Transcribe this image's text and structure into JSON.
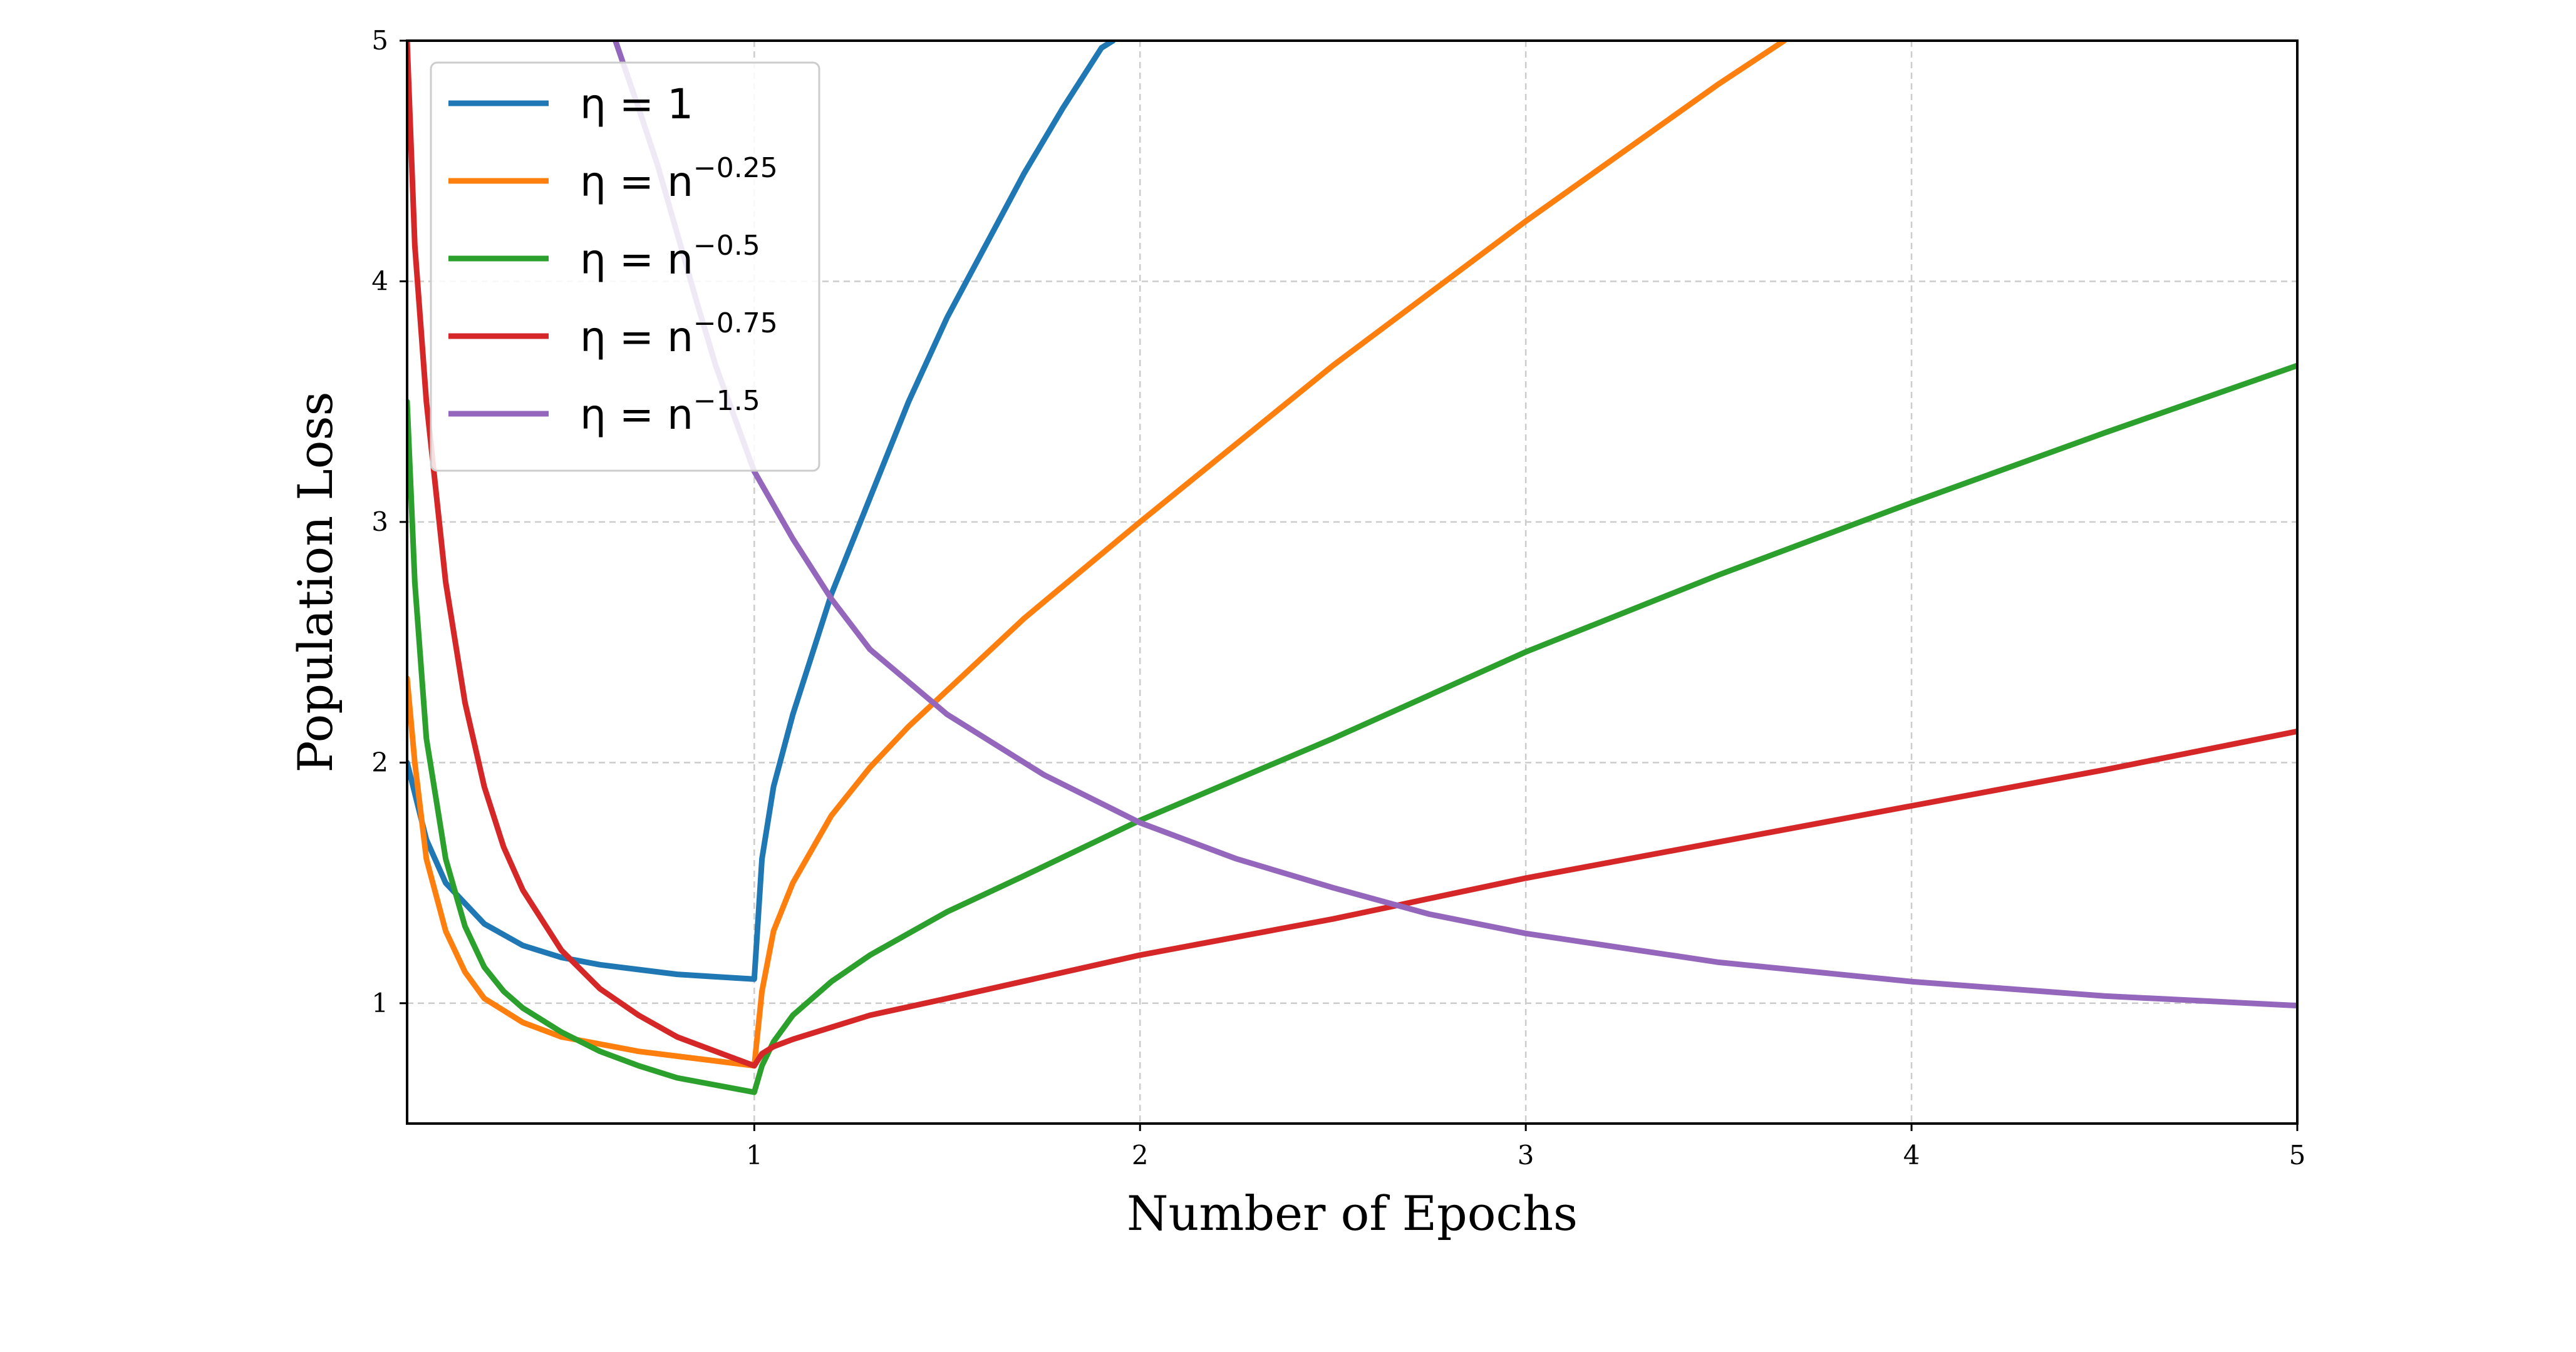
{
  "chart_data": {
    "type": "line",
    "title": "",
    "xlabel": "Number of Epochs",
    "ylabel": "Population Loss",
    "xlim": [
      0.1,
      5
    ],
    "ylim": [
      0.5,
      5
    ],
    "xticks": [
      1,
      2,
      3,
      4,
      5
    ],
    "yticks": [
      1,
      2,
      3,
      4,
      5
    ],
    "grid": true,
    "legend_position": "top-left",
    "series": [
      {
        "name": "eta = 1",
        "legend": {
          "prefix": "η = 1",
          "sup": ""
        },
        "color": "#1f77b4",
        "x": [
          0.1,
          0.15,
          0.2,
          0.3,
          0.4,
          0.5,
          0.6,
          0.7,
          0.8,
          0.9,
          1.0,
          1.0,
          1.02,
          1.05,
          1.1,
          1.2,
          1.3,
          1.4,
          1.5,
          1.6,
          1.7,
          1.8,
          1.9,
          1.93
        ],
        "y": [
          2.0,
          1.68,
          1.5,
          1.33,
          1.24,
          1.19,
          1.16,
          1.14,
          1.12,
          1.11,
          1.1,
          1.1,
          1.6,
          1.9,
          2.2,
          2.7,
          3.1,
          3.5,
          3.85,
          4.15,
          4.45,
          4.72,
          4.97,
          5.0
        ]
      },
      {
        "name": "eta = n^-0.25",
        "legend": {
          "prefix": "η = n",
          "sup": "−0.25"
        },
        "color": "#ff7f0e",
        "x": [
          0.1,
          0.12,
          0.15,
          0.2,
          0.25,
          0.3,
          0.4,
          0.5,
          0.6,
          0.7,
          0.8,
          0.9,
          1.0,
          1.0,
          1.02,
          1.05,
          1.1,
          1.2,
          1.3,
          1.4,
          1.5,
          1.7,
          2.0,
          2.5,
          3.0,
          3.5,
          3.67
        ],
        "y": [
          2.35,
          2.0,
          1.6,
          1.3,
          1.13,
          1.02,
          0.92,
          0.86,
          0.83,
          0.8,
          0.78,
          0.76,
          0.74,
          0.74,
          1.05,
          1.3,
          1.5,
          1.78,
          1.98,
          2.15,
          2.3,
          2.6,
          3.0,
          3.65,
          4.25,
          4.82,
          5.0
        ]
      },
      {
        "name": "eta = n^-0.5",
        "legend": {
          "prefix": "η = n",
          "sup": "−0.5"
        },
        "color": "#2ca02c",
        "x": [
          0.1,
          0.12,
          0.15,
          0.2,
          0.25,
          0.3,
          0.35,
          0.4,
          0.5,
          0.6,
          0.7,
          0.8,
          0.9,
          1.0,
          1.0,
          1.02,
          1.05,
          1.1,
          1.2,
          1.3,
          1.5,
          1.7,
          2.0,
          2.5,
          3.0,
          3.5,
          4.0,
          4.5,
          5.0
        ],
        "y": [
          3.5,
          2.75,
          2.1,
          1.6,
          1.32,
          1.15,
          1.05,
          0.98,
          0.88,
          0.8,
          0.74,
          0.69,
          0.66,
          0.63,
          0.63,
          0.74,
          0.84,
          0.95,
          1.09,
          1.2,
          1.38,
          1.53,
          1.76,
          2.1,
          2.46,
          2.78,
          3.08,
          3.37,
          3.65
        ]
      },
      {
        "name": "eta = n^-0.75",
        "legend": {
          "prefix": "η = n",
          "sup": "−0.75"
        },
        "color": "#d62728",
        "x": [
          0.1,
          0.12,
          0.15,
          0.2,
          0.25,
          0.3,
          0.35,
          0.4,
          0.5,
          0.6,
          0.7,
          0.8,
          0.9,
          1.0,
          1.0,
          1.02,
          1.05,
          1.1,
          1.2,
          1.3,
          1.5,
          2.0,
          2.5,
          3.0,
          3.5,
          4.0,
          4.5,
          5.0
        ],
        "y": [
          5.0,
          4.15,
          3.5,
          2.75,
          2.25,
          1.9,
          1.65,
          1.47,
          1.22,
          1.06,
          0.95,
          0.86,
          0.8,
          0.74,
          0.74,
          0.79,
          0.82,
          0.85,
          0.9,
          0.95,
          1.02,
          1.2,
          1.35,
          1.52,
          1.67,
          1.82,
          1.97,
          2.13
        ]
      },
      {
        "name": "eta = n^-1.5",
        "legend": {
          "prefix": "η = n",
          "sup": "−1.5"
        },
        "color": "#9467bd",
        "x": [
          0.64,
          0.7,
          0.75,
          0.8,
          0.85,
          0.9,
          0.95,
          1.0,
          1.1,
          1.2,
          1.3,
          1.5,
          1.75,
          2.0,
          2.25,
          2.5,
          2.75,
          3.0,
          3.5,
          4.0,
          4.5,
          5.0
        ],
        "y": [
          5.0,
          4.72,
          4.48,
          4.2,
          3.92,
          3.65,
          3.43,
          3.21,
          2.93,
          2.68,
          2.47,
          2.2,
          1.95,
          1.75,
          1.6,
          1.48,
          1.37,
          1.29,
          1.17,
          1.09,
          1.03,
          0.99
        ]
      }
    ]
  }
}
